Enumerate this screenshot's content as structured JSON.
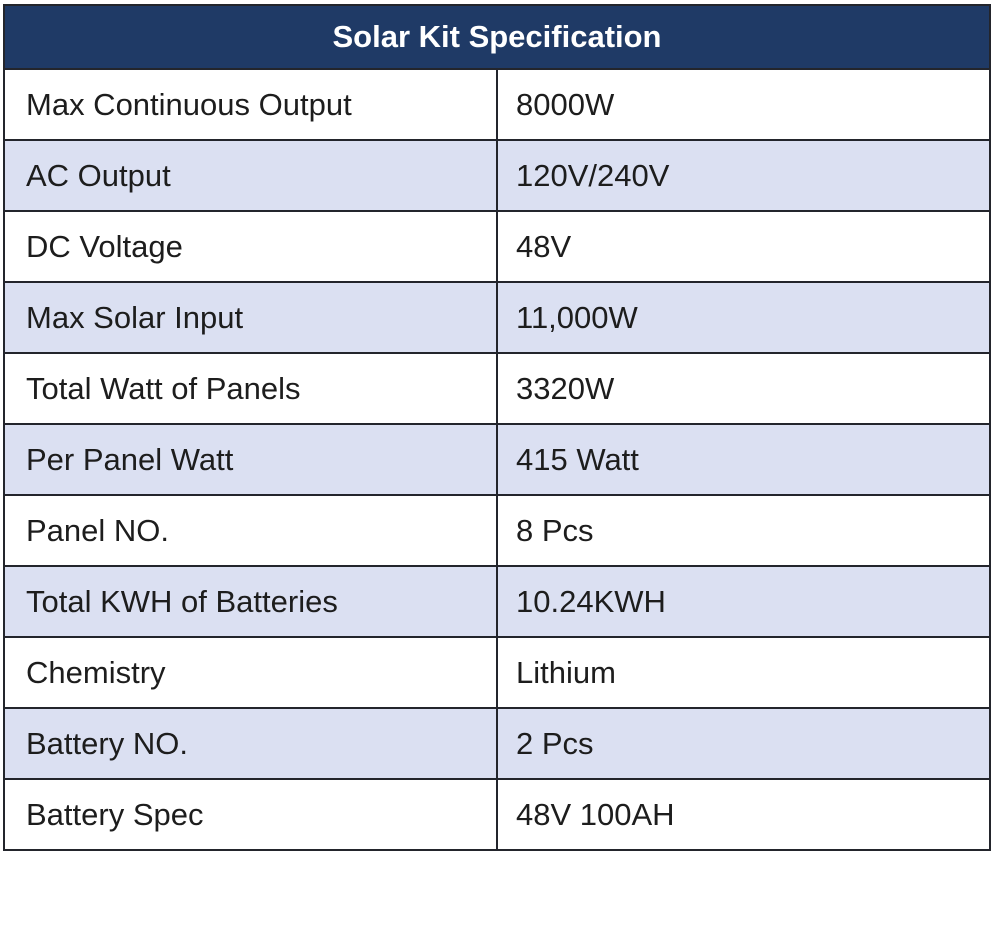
{
  "table": {
    "title": "Solar Kit Specification",
    "rows": [
      {
        "label": "Max Continuous Output",
        "value": "8000W"
      },
      {
        "label": "AC Output",
        "value": "120V/240V"
      },
      {
        "label": "DC Voltage",
        "value": "48V"
      },
      {
        "label": "Max Solar Input",
        "value": "11,000W"
      },
      {
        "label": "Total Watt of Panels",
        "value": "3320W"
      },
      {
        "label": "Per Panel Watt",
        "value": "415 Watt"
      },
      {
        "label": "Panel NO.",
        "value": "8 Pcs"
      },
      {
        "label": "Total KWH of Batteries",
        "value": "10.24KWH"
      },
      {
        "label": "Chemistry",
        "value": "Lithium"
      },
      {
        "label": "Battery NO.",
        "value": "2 Pcs"
      },
      {
        "label": "Battery Spec",
        "value": "48V 100AH"
      }
    ]
  },
  "colors": {
    "header_bg": "#1f3a66",
    "header_text": "#ffffff",
    "row_bg": "#ffffff",
    "row_alt_bg": "#dbe0f2",
    "border": "#23252c",
    "text": "#1d1d1d"
  },
  "chart_data": {
    "type": "table",
    "title": "Solar Kit Specification",
    "rows": [
      [
        "Max Continuous Output",
        "8000W"
      ],
      [
        "AC Output",
        "120V/240V"
      ],
      [
        "DC Voltage",
        "48V"
      ],
      [
        "Max Solar Input",
        "11,000W"
      ],
      [
        "Total Watt of Panels",
        "3320W"
      ],
      [
        "Per Panel Watt",
        "415 Watt"
      ],
      [
        "Panel NO.",
        "8 Pcs"
      ],
      [
        "Total KWH of Batteries",
        "10.24KWH"
      ],
      [
        "Chemistry",
        "Lithium"
      ],
      [
        "Battery NO.",
        "2 Pcs"
      ],
      [
        "Battery Spec",
        "48V 100AH"
      ]
    ],
    "layout": {
      "header_row": true,
      "alternating_row_shading": true,
      "columns": 2
    }
  }
}
